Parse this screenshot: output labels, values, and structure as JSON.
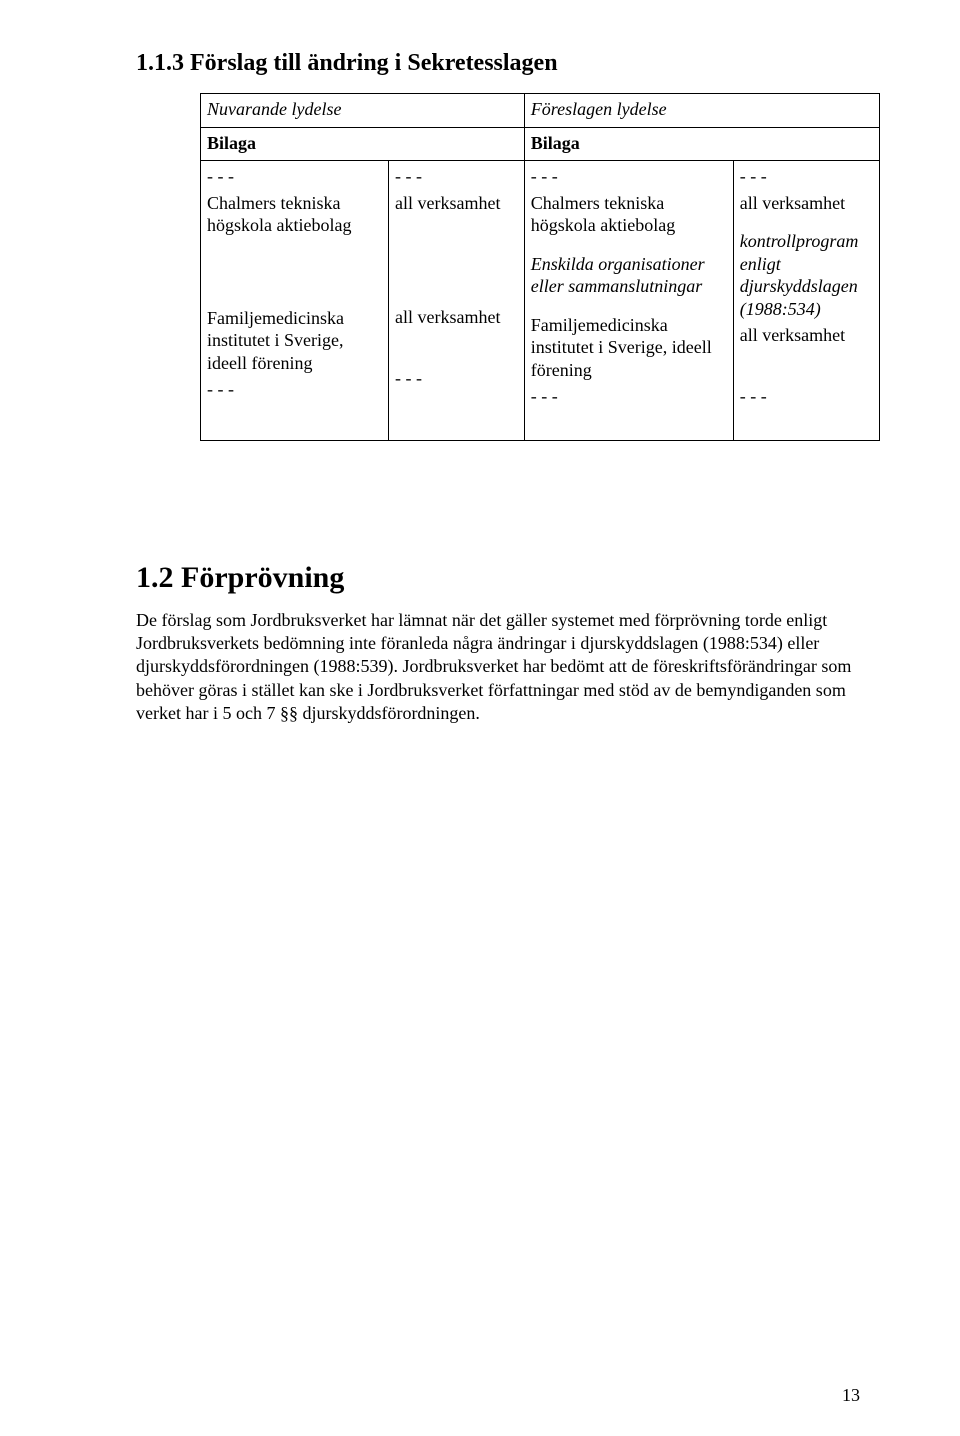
{
  "section1": {
    "heading": "1.1.3 Förslag till ändring i Sekretesslagen",
    "table": {
      "header_left": "Nuvarande lydelse",
      "header_right": "Föreslagen lydelse",
      "sub_left": "Bilaga",
      "sub_right": "Bilaga",
      "col1": {
        "dash1": "- - -",
        "chalmers": "Chalmers tekniska högskola aktiebolag",
        "familje": "Familjemedicinska institutet i Sverige, ideell förening",
        "dash2": "- - -"
      },
      "col2": {
        "dash1": "- - -",
        "all1": "all verksamhet",
        "all2": "all verksamhet",
        "dash2": "- - -"
      },
      "col3": {
        "dash1": "- - -",
        "chalmers": "Chalmers tekniska högskola aktiebolag",
        "enskilda": "Enskilda organisationer eller sammanslutningar",
        "familje": "Familjemedicinska institutet i Sverige, ideell förening",
        "dash2": "- - -"
      },
      "col4": {
        "dash1": "- - -",
        "all1": "all verksamhet",
        "kontroll": "kontrollprogram enligt djurskyddslagen (1988:534)",
        "all2": "all verksamhet",
        "dash2": "- - -"
      }
    }
  },
  "section2": {
    "heading": "1.2 Förprövning",
    "body": "De förslag som Jordbruksverket har lämnat när det gäller systemet med förprövning torde enligt Jordbruksverkets bedömning inte föranleda några ändringar i djurskyddslagen (1988:534) eller djurskyddsförordningen (1988:539). Jordbruksverket har bedömt att de föreskriftsförändringar som behöver göras i stället kan ske i Jordbruksverket författningar med stöd av de bemyndiganden som verket har i 5 och 7 §§ djurskyddsförordningen."
  },
  "page_number": "13"
}
